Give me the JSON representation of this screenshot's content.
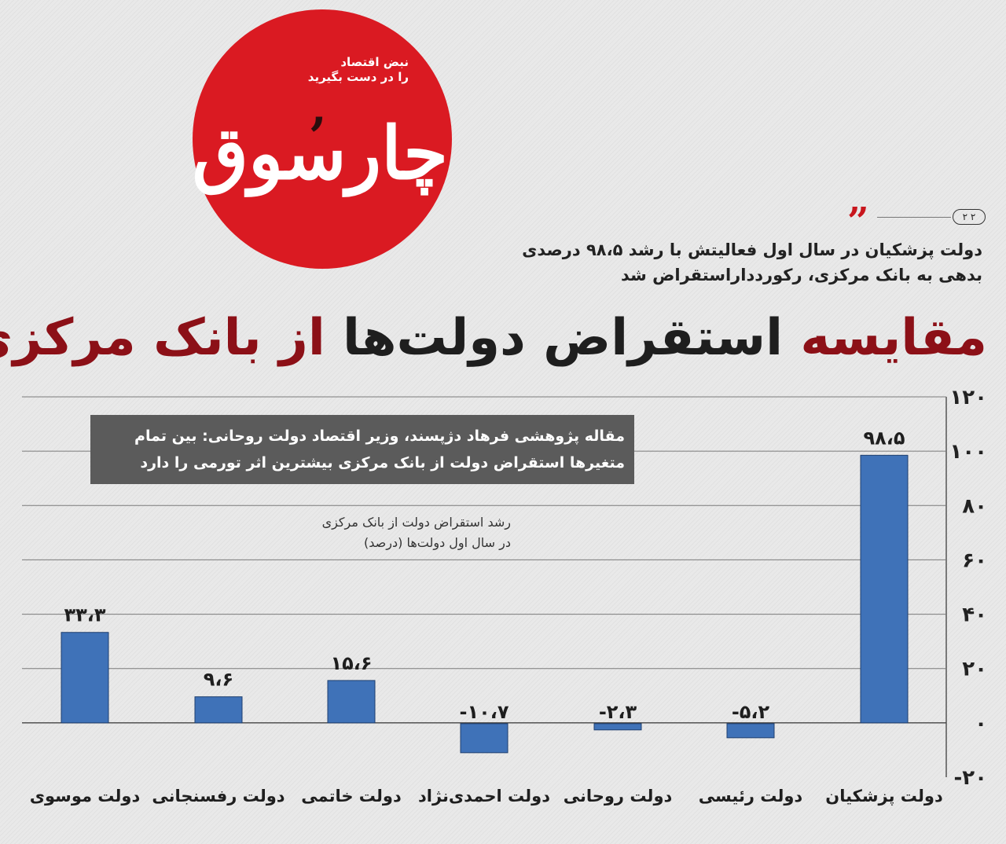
{
  "logo": {
    "name": "چارسوق",
    "tagline": [
      "نبض اقتصاد",
      "را در دست بگیرید"
    ]
  },
  "page_badge": "۲ ۲",
  "subtitle": [
    "دولت پزشکیان در سال اول فعالیتش با رشد ۹۸،۵ درصدی",
    "بدهی به بانک مرکزی، رکوردداراستقراض شد"
  ],
  "headline": {
    "part1": "مقایسه",
    "part2": " استقراض دولت‌ها ",
    "part3": "از",
    "part4": " بانک مرکزی"
  },
  "callout": [
    "مقاله پژوهشی فرهاد دژپسند، وزیر اقتصاد دولت روحانی: بین تمام",
    "متغیرها استقراض دولت از بانک مرکزی بیشترین اثر تورمی را دارد"
  ],
  "colors": {
    "bar": "#3f72b8",
    "red": "#da1a22",
    "dark_red": "#8c1017"
  },
  "chart_data": {
    "type": "bar",
    "title": "رشد استقراض دولت از بانک مرکزی در سال اول دولت‌ها (درصد)",
    "title_lines": [
      "رشد استقراض دولت از بانک مرکزی",
      "در سال اول دولت‌ها (درصد)"
    ],
    "categories": [
      "دولت موسوی",
      "دولت رفسنجانی",
      "دولت خاتمی",
      "دولت احمدی‌نژاد",
      "دولت روحانی",
      "دولت رئیسی",
      "دولت پزشکیان"
    ],
    "values": [
      33.3,
      9.6,
      15.6,
      -10.7,
      -2.3,
      -5.2,
      98.5
    ],
    "value_labels": [
      "۳۳،۳",
      "۹،۶",
      "۱۵،۶",
      "-۱۰،۷",
      "-۲،۳",
      "-۵،۲",
      "۹۸،۵"
    ],
    "y_ticks": [
      120,
      100,
      80,
      60,
      40,
      20,
      0,
      -20
    ],
    "y_tick_labels": [
      "۱۲۰",
      "۱۰۰",
      "۸۰",
      "۶۰",
      "۴۰",
      "۲۰",
      "۰",
      "-۲۰"
    ],
    "ylim": [
      -20,
      120
    ],
    "grid": true,
    "axis_side": "right"
  }
}
